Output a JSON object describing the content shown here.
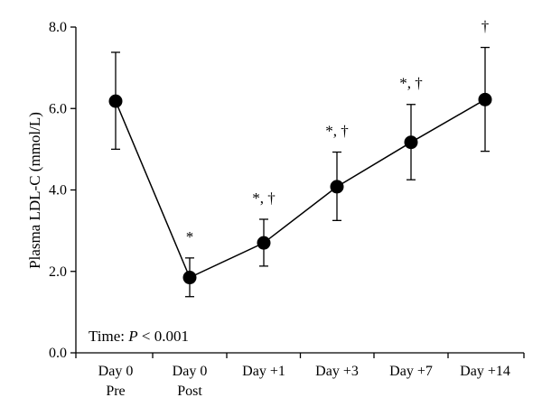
{
  "chart_data": {
    "type": "line",
    "title": "",
    "xlabel": "",
    "ylabel": "Plasma LDL-C (mmol/L)",
    "ylim": [
      0,
      8
    ],
    "y_ticks": [
      "0.0",
      "2.0",
      "4.0",
      "6.0",
      "8.0"
    ],
    "y_tick_values": [
      0,
      2,
      4,
      6,
      8
    ],
    "categories": [
      {
        "line1": "Day 0",
        "line2": "Pre"
      },
      {
        "line1": "Day 0",
        "line2": "Post"
      },
      {
        "line1": "Day +1",
        "line2": ""
      },
      {
        "line1": "Day +3",
        "line2": ""
      },
      {
        "line1": "Day +7",
        "line2": ""
      },
      {
        "line1": "Day +14",
        "line2": ""
      }
    ],
    "series": [
      {
        "values": [
          6.18,
          1.85,
          2.7,
          4.08,
          5.17,
          6.22
        ],
        "error_upper": [
          7.38,
          2.33,
          3.28,
          4.93,
          6.1,
          7.5
        ],
        "error_lower": [
          5.0,
          1.38,
          2.13,
          3.25,
          4.25,
          4.95
        ]
      }
    ],
    "annotations": [
      "",
      "*",
      "*, †",
      "*, †",
      "*, †",
      "†"
    ],
    "footnote": {
      "prefix": "Time: ",
      "italic": "P",
      "suffix": " < 0.001"
    },
    "grid": false,
    "line_color": "#000000",
    "marker_color": "#000000"
  }
}
